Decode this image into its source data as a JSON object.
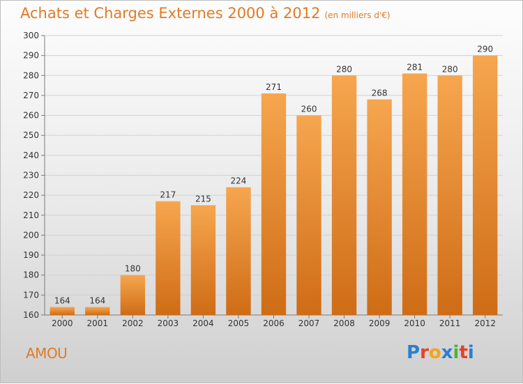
{
  "title": "Achats et Charges Externes 2000 à 2012",
  "unit": "(en milliers d'€)",
  "commune": "AMOU",
  "logo": {
    "letters": [
      {
        "ch": "P",
        "color": "#2a7fd0"
      },
      {
        "ch": "r",
        "color": "#e8402a"
      },
      {
        "ch": "o",
        "color": "#f3a41c"
      },
      {
        "ch": "x",
        "color": "#2a7fd0"
      },
      {
        "ch": "i",
        "color": "#4db33d"
      },
      {
        "ch": "t",
        "color": "#e8402a"
      },
      {
        "ch": "i",
        "color": "#2a7fd0"
      }
    ]
  },
  "colors": {
    "bar_light": "#f6a64f",
    "bar_dark": "#cf6c16",
    "accent": "#e07a26"
  },
  "chart_data": {
    "type": "bar",
    "categories": [
      "2000",
      "2001",
      "2002",
      "2003",
      "2004",
      "2005",
      "2006",
      "2007",
      "2008",
      "2009",
      "2010",
      "2011",
      "2012"
    ],
    "values": [
      164,
      164,
      180,
      217,
      215,
      224,
      271,
      260,
      280,
      268,
      281,
      280,
      290
    ],
    "title": "Achats et Charges Externes 2000 à 2012",
    "xlabel": "",
    "ylabel": "",
    "ylim": [
      160,
      300
    ],
    "yticks": [
      160,
      170,
      180,
      190,
      200,
      210,
      220,
      230,
      240,
      250,
      260,
      270,
      280,
      290,
      300
    ],
    "grid": true
  }
}
